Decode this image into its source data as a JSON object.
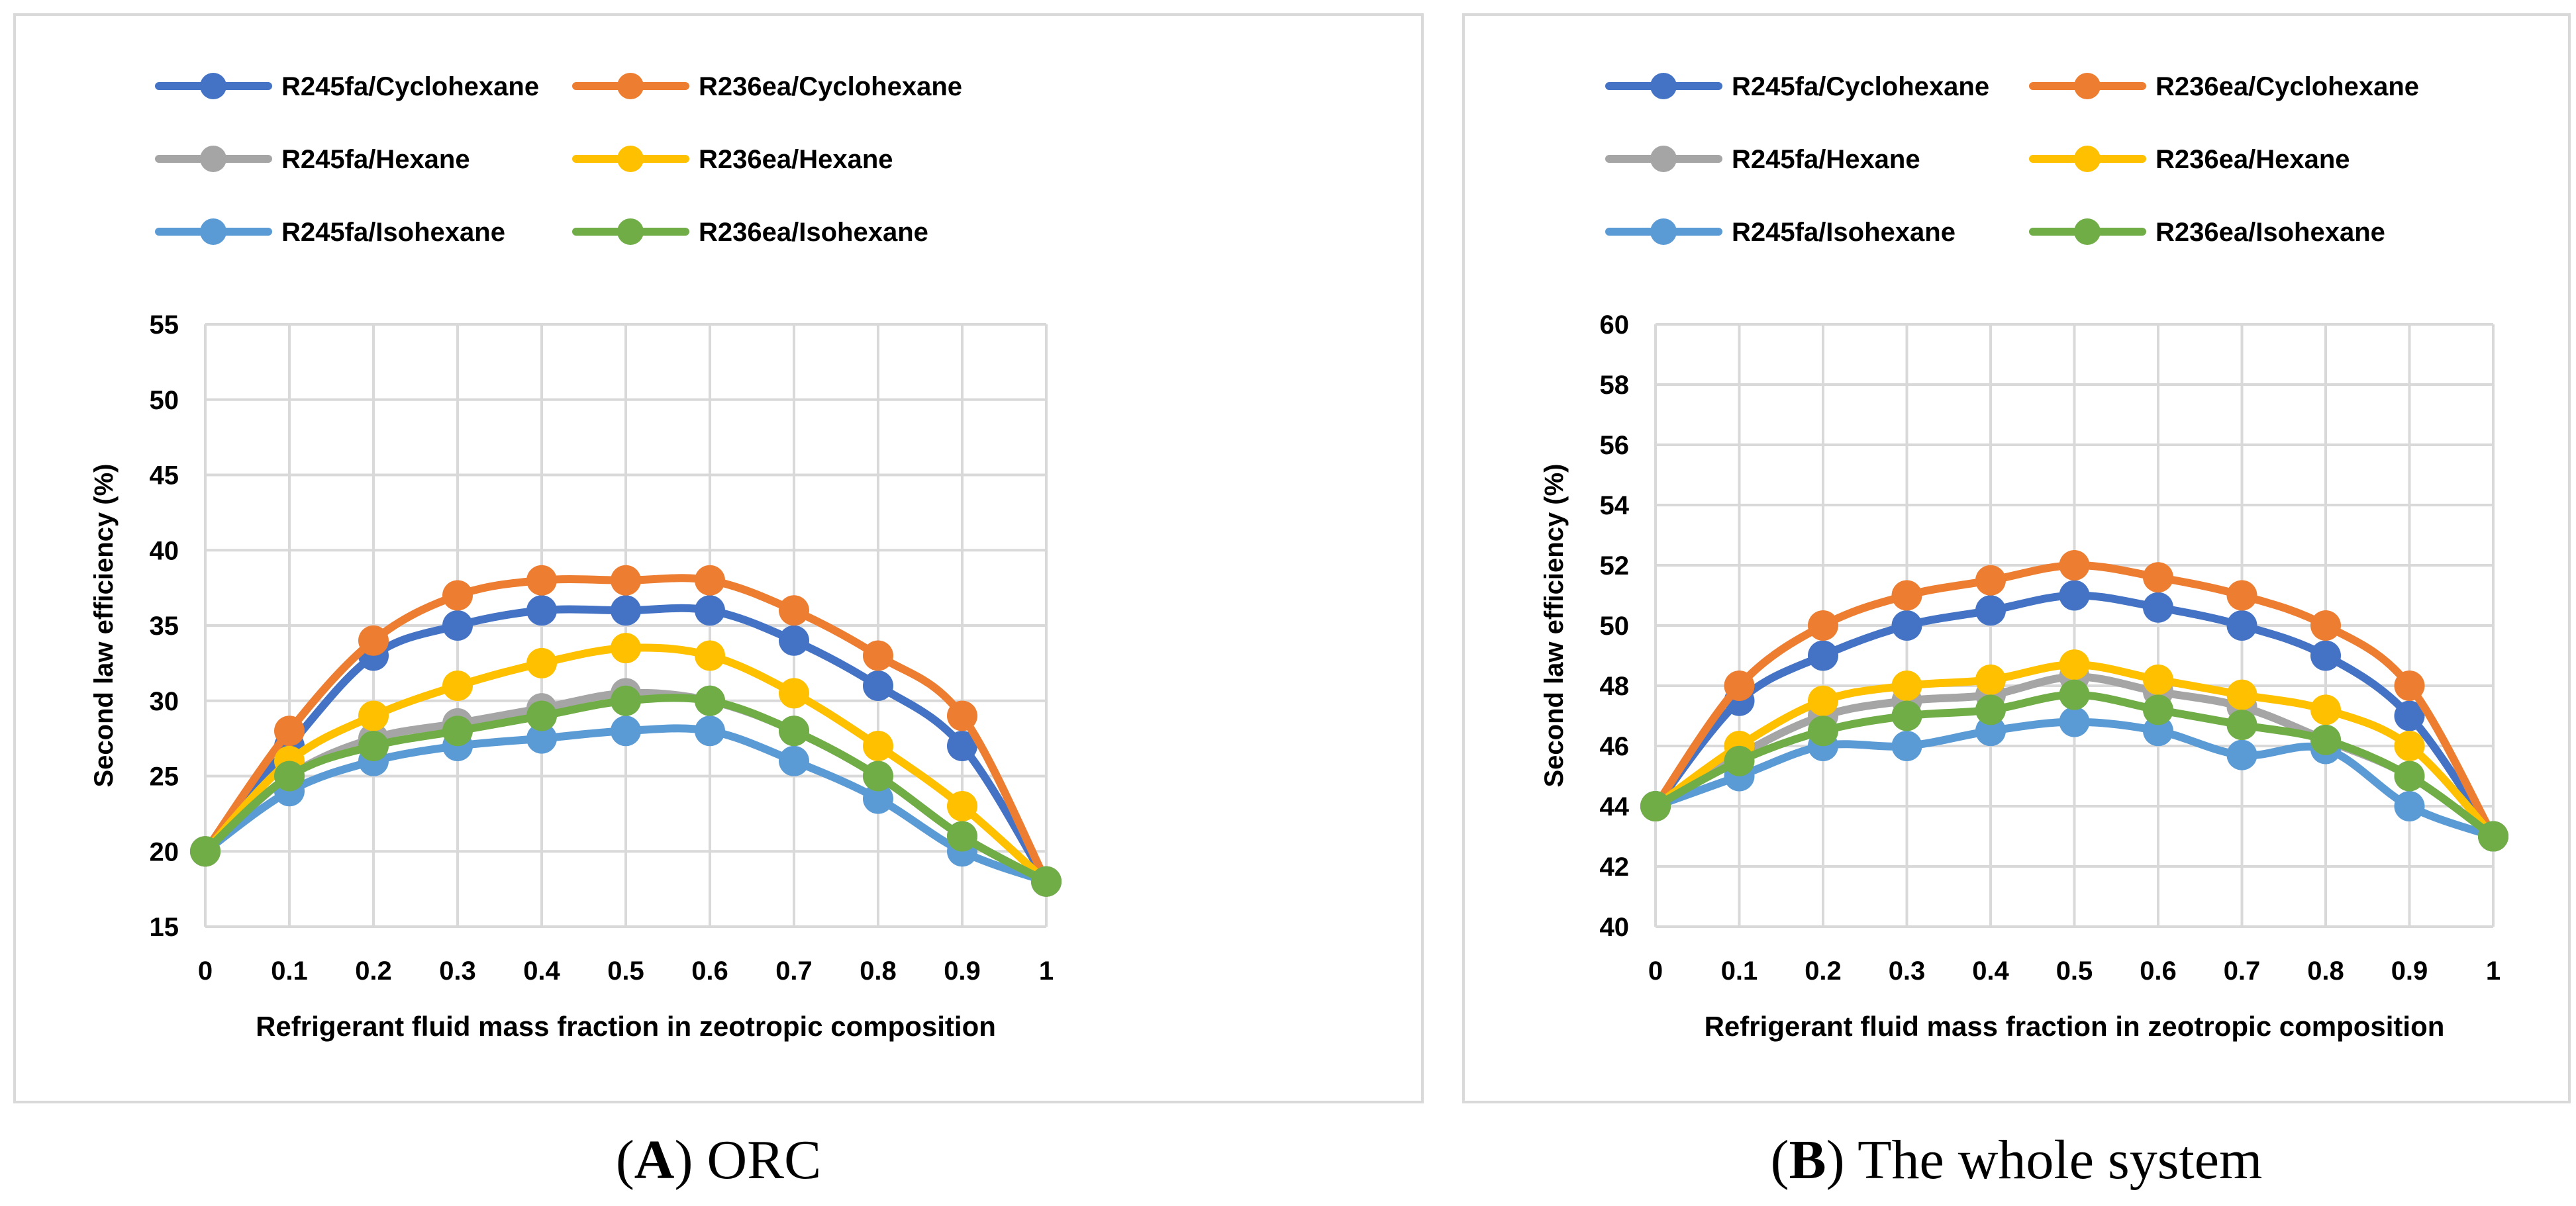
{
  "colors": {
    "R245fa/Cyclohexane": "#4472C4",
    "R236ea/Cyclohexane": "#ED7D31",
    "R245fa/Hexane": "#A5A5A5",
    "R236ea/Hexane": "#FFC000",
    "R245fa/Isohexane": "#5B9BD5",
    "R236ea/Isohexane": "#70AD47",
    "grid": "#D9D9D9",
    "border": "#D9D9D9",
    "text": "#000000"
  },
  "chart_data": [
    {
      "type": "line",
      "title": "",
      "caption": {
        "letter": "A",
        "rest": ") ORC"
      },
      "xlabel": "Refrigerant fluid mass fraction in zeotropic composition",
      "ylabel": "Second law efficiency (%)",
      "xlim": [
        0,
        1
      ],
      "ylim": [
        15,
        55
      ],
      "yticks": [
        "15",
        "20",
        "25",
        "30",
        "35",
        "40",
        "45",
        "50",
        "55"
      ],
      "xticks": [
        "0",
        "0.1",
        "0.2",
        "0.3",
        "0.4",
        "0.5",
        "0.6",
        "0.7",
        "0.8",
        "0.9",
        "1"
      ],
      "x": [
        0,
        0.1,
        0.2,
        0.3,
        0.4,
        0.5,
        0.6,
        0.7,
        0.8,
        0.9,
        1
      ],
      "grid": true,
      "legend_position": "top",
      "series": [
        {
          "name": "R245fa/Cyclohexane",
          "values": [
            20,
            27,
            33,
            35,
            36,
            36,
            36,
            34,
            31,
            27,
            18
          ]
        },
        {
          "name": "R236ea/Cyclohexane",
          "values": [
            20,
            28,
            34,
            37,
            38,
            38,
            38,
            36,
            33,
            29,
            18
          ]
        },
        {
          "name": "R245fa/Hexane",
          "values": [
            20,
            25,
            27.5,
            28.5,
            29.5,
            30.5,
            30,
            28,
            25,
            21,
            18
          ]
        },
        {
          "name": "R236ea/Hexane",
          "values": [
            20,
            26,
            29,
            31,
            32.5,
            33.5,
            33,
            30.5,
            27,
            23,
            18
          ]
        },
        {
          "name": "R245fa/Isohexane",
          "values": [
            20,
            24,
            26,
            27,
            27.5,
            28,
            28,
            26,
            23.5,
            20,
            18
          ]
        },
        {
          "name": "R236ea/Isohexane",
          "values": [
            20,
            25,
            27,
            28,
            29,
            30,
            30,
            28,
            25,
            21,
            18
          ]
        }
      ]
    },
    {
      "type": "line",
      "title": "",
      "caption": {
        "letter": "B",
        "rest": ") The whole system"
      },
      "xlabel": "Refrigerant fluid mass fraction in zeotropic composition",
      "ylabel": "Second law efficiency (%)",
      "xlim": [
        0,
        1
      ],
      "ylim": [
        40,
        60
      ],
      "yticks": [
        "40",
        "42",
        "44",
        "46",
        "48",
        "50",
        "52",
        "54",
        "56",
        "58",
        "60"
      ],
      "xticks": [
        "0",
        "0.1",
        "0.2",
        "0.3",
        "0.4",
        "0.5",
        "0.6",
        "0.7",
        "0.8",
        "0.9",
        "1"
      ],
      "x": [
        0,
        0.1,
        0.2,
        0.3,
        0.4,
        0.5,
        0.6,
        0.7,
        0.8,
        0.9,
        1
      ],
      "grid": true,
      "legend_position": "top",
      "series": [
        {
          "name": "R245fa/Cyclohexane",
          "values": [
            44,
            47.5,
            49,
            50,
            50.5,
            51,
            50.6,
            50,
            49,
            47,
            43
          ]
        },
        {
          "name": "R236ea/Cyclohexane",
          "values": [
            44,
            48,
            50,
            51,
            51.5,
            52,
            51.6,
            51,
            50,
            48,
            43
          ]
        },
        {
          "name": "R245fa/Hexane",
          "values": [
            44,
            45.7,
            47,
            47.5,
            47.7,
            48.3,
            47.8,
            47.3,
            46.2,
            45,
            43
          ]
        },
        {
          "name": "R236ea/Hexane",
          "values": [
            44,
            46,
            47.5,
            48,
            48.2,
            48.7,
            48.2,
            47.7,
            47.2,
            46,
            43
          ]
        },
        {
          "name": "R245fa/Isohexane",
          "values": [
            44,
            45,
            46,
            46,
            46.5,
            46.8,
            46.5,
            45.7,
            45.9,
            44,
            43
          ]
        },
        {
          "name": "R236ea/Isohexane",
          "values": [
            44,
            45.5,
            46.5,
            47,
            47.2,
            47.7,
            47.2,
            46.7,
            46.2,
            45,
            43
          ]
        }
      ]
    }
  ]
}
